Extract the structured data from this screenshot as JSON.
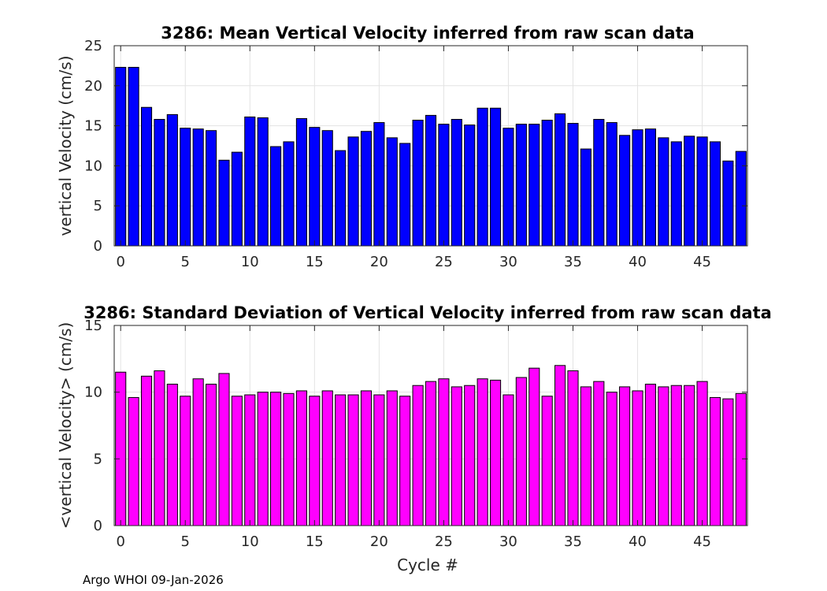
{
  "chart_data": [
    {
      "type": "bar",
      "title": "3286: Mean Vertical Velocity inferred from raw scan data",
      "xlabel": "",
      "ylabel": "vertical Velocity (cm/s)",
      "xlim": [
        -0.5,
        48.5
      ],
      "ylim": [
        0,
        25
      ],
      "xticks": [
        0,
        5,
        10,
        15,
        20,
        25,
        30,
        35,
        40,
        45
      ],
      "yticks": [
        0,
        5,
        10,
        15,
        20,
        25
      ],
      "grid": true,
      "bar_color": "#0000ff",
      "x": [
        0,
        1,
        2,
        3,
        4,
        5,
        6,
        7,
        8,
        9,
        10,
        11,
        12,
        13,
        14,
        15,
        16,
        17,
        18,
        19,
        20,
        21,
        22,
        23,
        24,
        25,
        26,
        27,
        28,
        29,
        30,
        31,
        32,
        33,
        34,
        35,
        36,
        37,
        38,
        39,
        40,
        41,
        42,
        43,
        44,
        45,
        46,
        47,
        48
      ],
      "values": [
        22.3,
        22.3,
        17.3,
        15.8,
        16.4,
        14.7,
        14.6,
        14.4,
        10.7,
        11.7,
        16.1,
        16.0,
        12.4,
        13.0,
        15.9,
        14.8,
        14.4,
        11.9,
        13.6,
        14.3,
        15.4,
        13.5,
        12.8,
        15.7,
        16.3,
        15.2,
        15.8,
        15.1,
        17.2,
        17.2,
        14.7,
        15.2,
        15.2,
        15.7,
        16.5,
        15.3,
        12.1,
        15.8,
        15.4,
        13.8,
        14.5,
        14.6,
        13.5,
        13.0,
        13.7,
        13.6,
        13.0,
        10.6,
        11.8
      ]
    },
    {
      "type": "bar",
      "title": "3286: Standard Deviation of Vertical Velocity inferred from raw scan data",
      "xlabel": "Cycle #",
      "ylabel": "<vertical Velocity> (cm/s)",
      "xlim": [
        -0.5,
        48.5
      ],
      "ylim": [
        0,
        15
      ],
      "xticks": [
        0,
        5,
        10,
        15,
        20,
        25,
        30,
        35,
        40,
        45
      ],
      "yticks": [
        0,
        5,
        10,
        15
      ],
      "grid": true,
      "bar_color": "#ff00ff",
      "x": [
        0,
        1,
        2,
        3,
        4,
        5,
        6,
        7,
        8,
        9,
        10,
        11,
        12,
        13,
        14,
        15,
        16,
        17,
        18,
        19,
        20,
        21,
        22,
        23,
        24,
        25,
        26,
        27,
        28,
        29,
        30,
        31,
        32,
        33,
        34,
        35,
        36,
        37,
        38,
        39,
        40,
        41,
        42,
        43,
        44,
        45,
        46,
        47,
        48
      ],
      "values": [
        11.5,
        9.6,
        11.2,
        11.6,
        10.6,
        9.7,
        11.0,
        10.6,
        11.4,
        9.7,
        9.8,
        10.0,
        10.0,
        9.9,
        10.1,
        9.7,
        10.1,
        9.8,
        9.8,
        10.1,
        9.8,
        10.1,
        9.7,
        10.5,
        10.8,
        11.0,
        10.4,
        10.5,
        11.0,
        10.9,
        9.8,
        11.1,
        11.8,
        9.7,
        12.0,
        11.6,
        10.4,
        10.8,
        10.0,
        10.4,
        10.1,
        10.6,
        10.4,
        10.5,
        10.5,
        10.8,
        9.6,
        9.5,
        9.9
      ]
    }
  ],
  "footer": {
    "text": "Argo WHOI 09-Jan-2026"
  }
}
